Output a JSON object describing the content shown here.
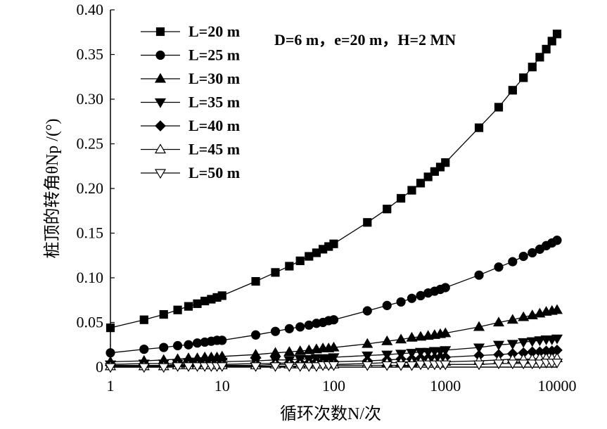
{
  "chart_data": {
    "type": "line",
    "xscale": "log",
    "xlim": [
      1,
      10000
    ],
    "ylim": [
      0,
      0.4
    ],
    "xlabel": "循环次数N/次",
    "ylabel": "桩顶的转角θNp /(°)",
    "annotation": "D=6 m，e=20 m，H=2 MN",
    "x_ticks": [
      {
        "value": 1,
        "label": "1"
      },
      {
        "value": 10,
        "label": "10"
      },
      {
        "value": 100,
        "label": "100"
      },
      {
        "value": 1000,
        "label": "1000"
      },
      {
        "value": 10000,
        "label": "10000"
      }
    ],
    "y_ticks": [
      {
        "value": 0,
        "label": "0"
      },
      {
        "value": 0.05,
        "label": "0.05"
      },
      {
        "value": 0.1,
        "label": "0.10"
      },
      {
        "value": 0.15,
        "label": "0.15"
      },
      {
        "value": 0.2,
        "label": "0.20"
      },
      {
        "value": 0.25,
        "label": "0.25"
      },
      {
        "value": 0.3,
        "label": "0.30"
      },
      {
        "value": 0.35,
        "label": "0.35"
      },
      {
        "value": 0.4,
        "label": "0.40"
      }
    ],
    "x": [
      1,
      2,
      3,
      4,
      5,
      6,
      7,
      8,
      9,
      10,
      20,
      30,
      40,
      50,
      60,
      70,
      80,
      90,
      100,
      200,
      300,
      400,
      500,
      600,
      700,
      800,
      900,
      1000,
      2000,
      3000,
      4000,
      5000,
      6000,
      7000,
      8000,
      9000,
      10000
    ],
    "series": [
      {
        "name": "L=20 m",
        "marker": "square-filled",
        "values": [
          0.044,
          0.053,
          0.059,
          0.064,
          0.068,
          0.071,
          0.074,
          0.076,
          0.078,
          0.08,
          0.096,
          0.106,
          0.113,
          0.119,
          0.124,
          0.128,
          0.132,
          0.135,
          0.138,
          0.162,
          0.177,
          0.189,
          0.198,
          0.206,
          0.213,
          0.219,
          0.224,
          0.229,
          0.268,
          0.291,
          0.31,
          0.324,
          0.336,
          0.347,
          0.356,
          0.365,
          0.373
        ]
      },
      {
        "name": "L=25 m",
        "marker": "circle-filled",
        "values": [
          0.016,
          0.02,
          0.022,
          0.024,
          0.025,
          0.027,
          0.028,
          0.029,
          0.03,
          0.03,
          0.036,
          0.04,
          0.043,
          0.045,
          0.047,
          0.049,
          0.05,
          0.052,
          0.053,
          0.063,
          0.069,
          0.073,
          0.077,
          0.08,
          0.083,
          0.085,
          0.087,
          0.089,
          0.103,
          0.112,
          0.118,
          0.124,
          0.128,
          0.132,
          0.136,
          0.139,
          0.142
        ]
      },
      {
        "name": "L=30 m",
        "marker": "triangle-up-filled",
        "values": [
          0.006,
          0.007,
          0.008,
          0.009,
          0.01,
          0.01,
          0.011,
          0.011,
          0.011,
          0.012,
          0.014,
          0.016,
          0.017,
          0.018,
          0.019,
          0.02,
          0.021,
          0.021,
          0.022,
          0.026,
          0.029,
          0.031,
          0.033,
          0.034,
          0.035,
          0.036,
          0.037,
          0.038,
          0.045,
          0.05,
          0.053,
          0.056,
          0.058,
          0.06,
          0.062,
          0.063,
          0.064
        ]
      },
      {
        "name": "L=35 m",
        "marker": "triangle-down-filled",
        "values": [
          0.003,
          0.004,
          0.004,
          0.004,
          0.005,
          0.005,
          0.005,
          0.005,
          0.006,
          0.006,
          0.007,
          0.008,
          0.008,
          0.009,
          0.009,
          0.01,
          0.01,
          0.01,
          0.011,
          0.013,
          0.014,
          0.015,
          0.016,
          0.017,
          0.017,
          0.018,
          0.018,
          0.019,
          0.022,
          0.025,
          0.026,
          0.028,
          0.029,
          0.03,
          0.031,
          0.031,
          0.032
        ]
      },
      {
        "name": "L=40 m",
        "marker": "diamond-filled",
        "values": [
          0.002,
          0.002,
          0.002,
          0.003,
          0.003,
          0.003,
          0.003,
          0.003,
          0.003,
          0.003,
          0.004,
          0.004,
          0.005,
          0.005,
          0.005,
          0.006,
          0.006,
          0.006,
          0.006,
          0.007,
          0.008,
          0.009,
          0.009,
          0.01,
          0.01,
          0.01,
          0.011,
          0.011,
          0.013,
          0.014,
          0.015,
          0.016,
          0.017,
          0.017,
          0.018,
          0.018,
          0.019
        ]
      },
      {
        "name": "L=45 m",
        "marker": "triangle-up-open",
        "values": [
          0.001,
          0.001,
          0.001,
          0.002,
          0.002,
          0.002,
          0.002,
          0.002,
          0.002,
          0.002,
          0.002,
          0.003,
          0.003,
          0.003,
          0.003,
          0.003,
          0.003,
          0.003,
          0.003,
          0.004,
          0.005,
          0.005,
          0.005,
          0.006,
          0.006,
          0.006,
          0.006,
          0.006,
          0.007,
          0.008,
          0.009,
          0.009,
          0.009,
          0.01,
          0.01,
          0.01,
          0.01
        ]
      },
      {
        "name": "L=50 m",
        "marker": "triangle-down-open",
        "values": [
          0.0,
          0.0,
          0.0,
          0.001,
          0.001,
          0.001,
          0.001,
          0.001,
          0.001,
          0.001,
          0.001,
          0.001,
          0.001,
          0.001,
          0.001,
          0.001,
          0.002,
          0.002,
          0.002,
          0.002,
          0.002,
          0.002,
          0.002,
          0.003,
          0.003,
          0.003,
          0.003,
          0.003,
          0.003,
          0.004,
          0.004,
          0.004,
          0.004,
          0.004,
          0.005,
          0.005,
          0.005
        ]
      }
    ],
    "legend_position": "top-left",
    "grid": false
  }
}
